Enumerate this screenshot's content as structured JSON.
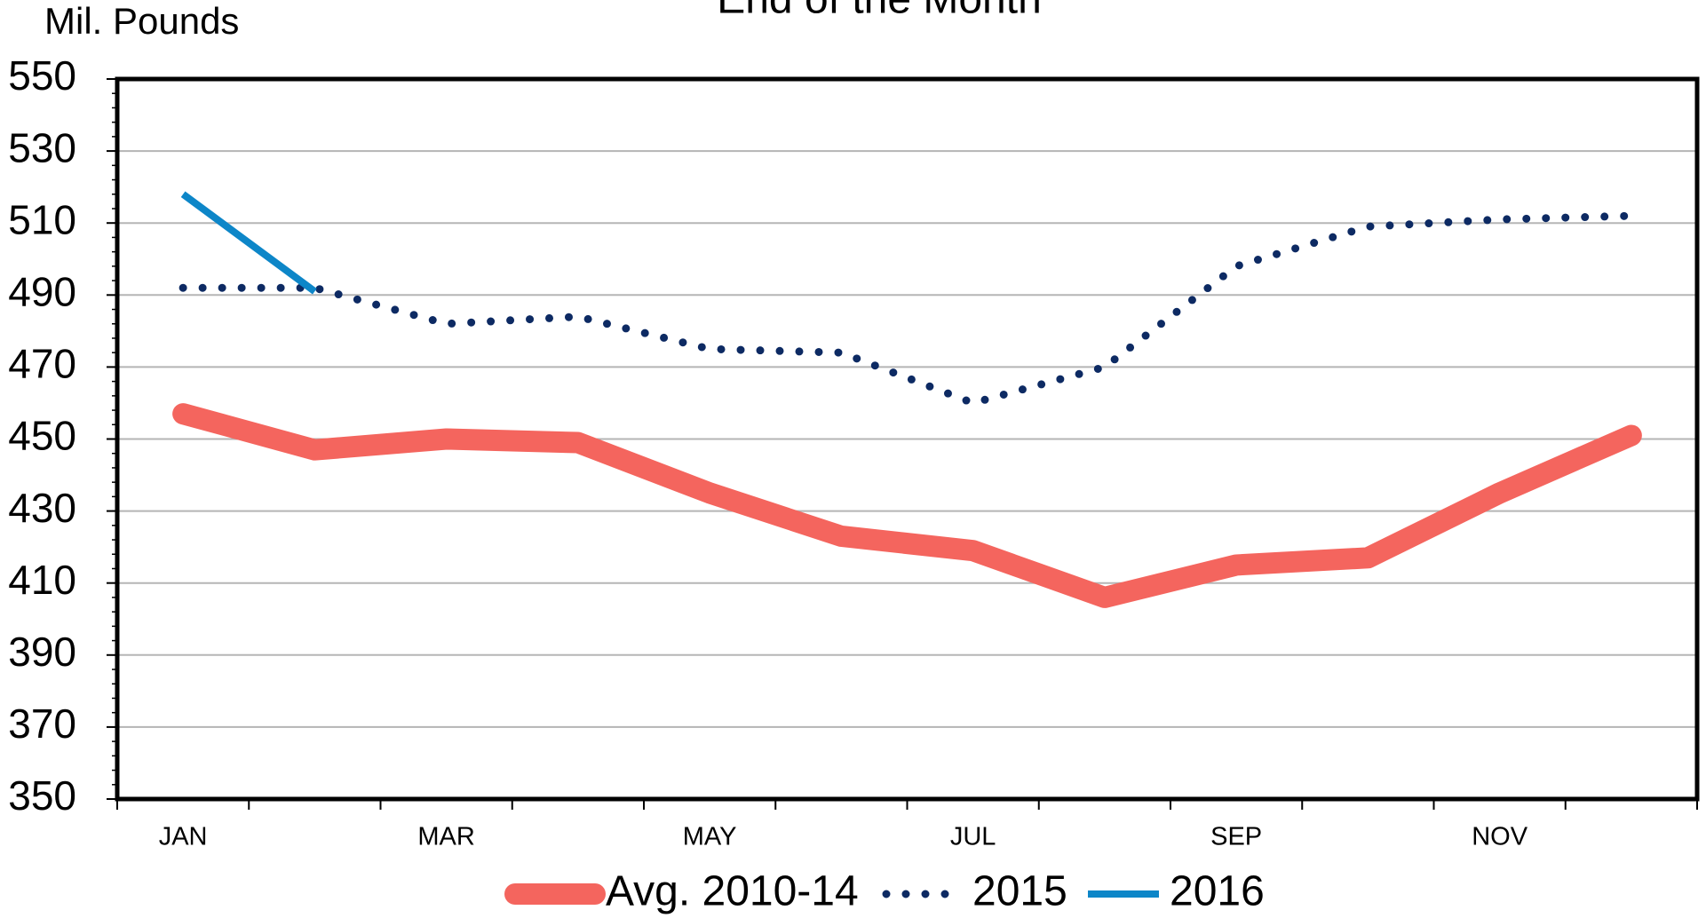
{
  "chart_data": {
    "type": "line",
    "title": "End of the Month",
    "ylabel": "Mil. Pounds",
    "categories": [
      "JAN",
      null,
      "MAR",
      null,
      "MAY",
      null,
      "JUL",
      null,
      "SEP",
      null,
      "NOV",
      null
    ],
    "series": [
      {
        "name": "Avg. 2010-14",
        "color": "#f4655e",
        "style": "thick",
        "values": [
          457,
          447,
          450,
          449,
          435,
          423,
          419,
          406,
          415,
          417,
          435,
          451
        ]
      },
      {
        "name": "2015",
        "color": "#0d2a63",
        "style": "dotted",
        "values": [
          492,
          492,
          482,
          484,
          475,
          474,
          460,
          470,
          498,
          509,
          511,
          512
        ]
      },
      {
        "name": "2016",
        "color": "#0d86c8",
        "style": "solid",
        "values": [
          518,
          491,
          null,
          null,
          null,
          null,
          null,
          null,
          null,
          null,
          null,
          null
        ]
      }
    ],
    "ylim": [
      350,
      550
    ],
    "yticks": [
      350,
      370,
      390,
      410,
      430,
      450,
      470,
      490,
      510,
      530,
      550
    ],
    "grid": true,
    "legend": "bottom"
  }
}
